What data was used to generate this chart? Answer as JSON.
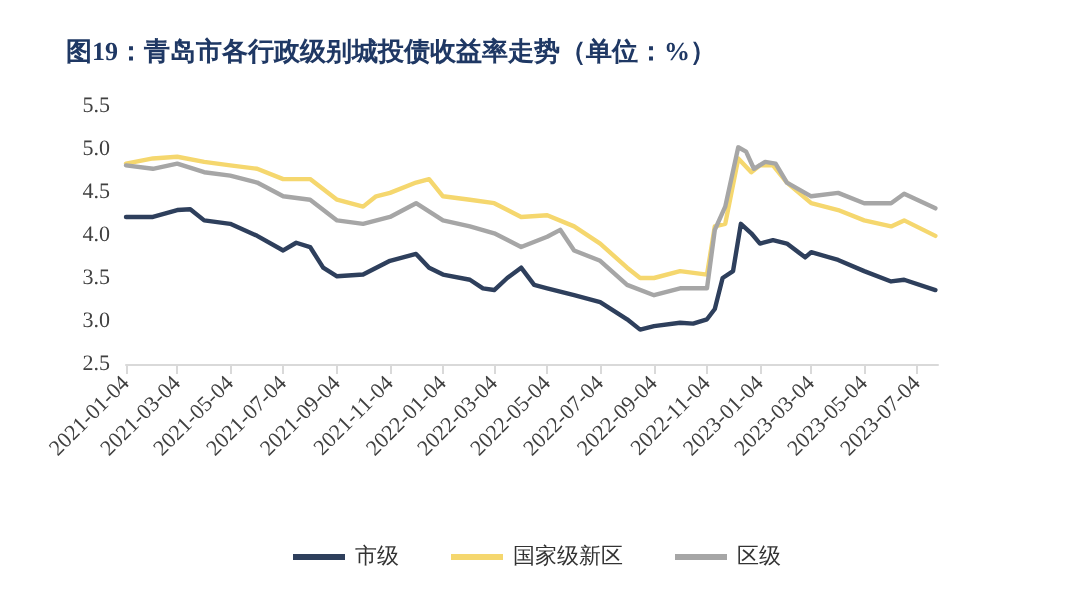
{
  "chart_data": {
    "type": "line",
    "title": "图19：青岛市各行政级别城投债收益率走势（单位：%）",
    "xlim": [
      "2021-01-04",
      "2023-07-28"
    ],
    "xticks": [
      "2021-01-04",
      "2021-03-04",
      "2021-05-04",
      "2021-07-04",
      "2021-09-04",
      "2021-11-04",
      "2022-01-04",
      "2022-03-04",
      "2022-05-04",
      "2022-07-04",
      "2022-09-04",
      "2022-11-04",
      "2023-01-04",
      "2023-03-04",
      "2023-05-04",
      "2023-07-04"
    ],
    "ylim": [
      2.5,
      5.5
    ],
    "yticks": [
      {
        "value": 2.5,
        "label": "2.5"
      },
      {
        "value": 3,
        "label": "3.0"
      },
      {
        "value": 3.5,
        "label": "3.5"
      },
      {
        "value": 4,
        "label": "4.0"
      },
      {
        "value": 4.5,
        "label": "4.5"
      },
      {
        "value": 5,
        "label": "5.0"
      },
      {
        "value": 5.5,
        "label": "5.5"
      }
    ],
    "grid": false,
    "legend": "bottom",
    "marker": "none",
    "line_style": "solid",
    "series": [
      {
        "name": "市级",
        "color": "#2e3f5c",
        "x": [
          "2021-01-04",
          "2021-02-04",
          "2021-03-04",
          "2021-03-19",
          "2021-04-04",
          "2021-05-04",
          "2021-06-04",
          "2021-07-04",
          "2021-07-19",
          "2021-08-04",
          "2021-08-19",
          "2021-09-04",
          "2021-10-04",
          "2021-11-04",
          "2021-12-04",
          "2021-12-19",
          "2022-01-04",
          "2022-02-04",
          "2022-02-19",
          "2022-03-04",
          "2022-03-19",
          "2022-04-04",
          "2022-04-19",
          "2022-05-04",
          "2022-06-04",
          "2022-07-04",
          "2022-08-04",
          "2022-08-19",
          "2022-09-04",
          "2022-10-04",
          "2022-10-19",
          "2022-11-04",
          "2022-11-13",
          "2022-11-22",
          "2022-12-04",
          "2022-12-13",
          "2022-12-25",
          "2023-01-04",
          "2023-01-19",
          "2023-02-04",
          "2023-02-25",
          "2023-03-04",
          "2023-04-04",
          "2023-05-04",
          "2023-06-04",
          "2023-06-19",
          "2023-07-25"
        ],
        "values": [
          4.21,
          4.21,
          4.29,
          4.3,
          4.17,
          4.13,
          3.99,
          3.82,
          3.91,
          3.86,
          3.62,
          3.52,
          3.54,
          3.7,
          3.78,
          3.62,
          3.54,
          3.48,
          3.38,
          3.36,
          3.5,
          3.62,
          3.42,
          3.38,
          3.3,
          3.22,
          3.02,
          2.9,
          2.94,
          2.98,
          2.97,
          3.02,
          3.14,
          3.5,
          3.58,
          4.13,
          4.02,
          3.9,
          3.94,
          3.9,
          3.74,
          3.8,
          3.71,
          3.58,
          3.46,
          3.48,
          3.36
        ]
      },
      {
        "name": "国家级新区",
        "color": "#f5d76e",
        "x": [
          "2021-01-04",
          "2021-02-04",
          "2021-03-04",
          "2021-04-04",
          "2021-05-04",
          "2021-06-04",
          "2021-07-04",
          "2021-08-04",
          "2021-09-04",
          "2021-10-04",
          "2021-10-19",
          "2021-11-04",
          "2021-12-04",
          "2021-12-19",
          "2022-01-04",
          "2022-02-04",
          "2022-03-04",
          "2022-04-04",
          "2022-05-04",
          "2022-06-04",
          "2022-07-04",
          "2022-08-04",
          "2022-08-19",
          "2022-09-04",
          "2022-10-04",
          "2022-11-04",
          "2022-11-13",
          "2022-11-25",
          "2022-12-10",
          "2022-12-25",
          "2023-01-04",
          "2023-01-19",
          "2023-02-04",
          "2023-03-04",
          "2023-04-04",
          "2023-05-04",
          "2023-06-04",
          "2023-06-19",
          "2023-07-25"
        ],
        "values": [
          4.83,
          4.89,
          4.91,
          4.85,
          4.81,
          4.77,
          4.65,
          4.65,
          4.41,
          4.33,
          4.45,
          4.49,
          4.61,
          4.65,
          4.45,
          4.41,
          4.37,
          4.21,
          4.23,
          4.1,
          3.9,
          3.62,
          3.5,
          3.5,
          3.58,
          3.54,
          4.1,
          4.13,
          4.89,
          4.73,
          4.81,
          4.81,
          4.61,
          4.37,
          4.29,
          4.17,
          4.1,
          4.17,
          3.99
        ]
      },
      {
        "name": "区级",
        "color": "#a6a6a6",
        "x": [
          "2021-01-04",
          "2021-02-04",
          "2021-03-04",
          "2021-04-04",
          "2021-05-04",
          "2021-06-04",
          "2021-07-04",
          "2021-08-04",
          "2021-09-04",
          "2021-10-04",
          "2021-11-04",
          "2021-12-04",
          "2022-01-04",
          "2022-02-04",
          "2022-03-04",
          "2022-04-04",
          "2022-05-04",
          "2022-05-19",
          "2022-06-04",
          "2022-07-04",
          "2022-08-04",
          "2022-09-04",
          "2022-10-04",
          "2022-11-04",
          "2022-11-13",
          "2022-11-25",
          "2022-12-10",
          "2022-12-19",
          "2022-12-28",
          "2023-01-10",
          "2023-01-22",
          "2023-02-04",
          "2023-03-04",
          "2023-04-04",
          "2023-05-04",
          "2023-06-04",
          "2023-06-19",
          "2023-07-25"
        ],
        "values": [
          4.81,
          4.77,
          4.83,
          4.73,
          4.69,
          4.61,
          4.45,
          4.41,
          4.17,
          4.13,
          4.21,
          4.37,
          4.17,
          4.1,
          4.02,
          3.86,
          3.98,
          4.06,
          3.82,
          3.7,
          3.42,
          3.3,
          3.38,
          3.38,
          4.06,
          4.33,
          5.02,
          4.97,
          4.77,
          4.85,
          4.83,
          4.61,
          4.45,
          4.49,
          4.37,
          4.37,
          4.48,
          4.31
        ]
      }
    ]
  }
}
